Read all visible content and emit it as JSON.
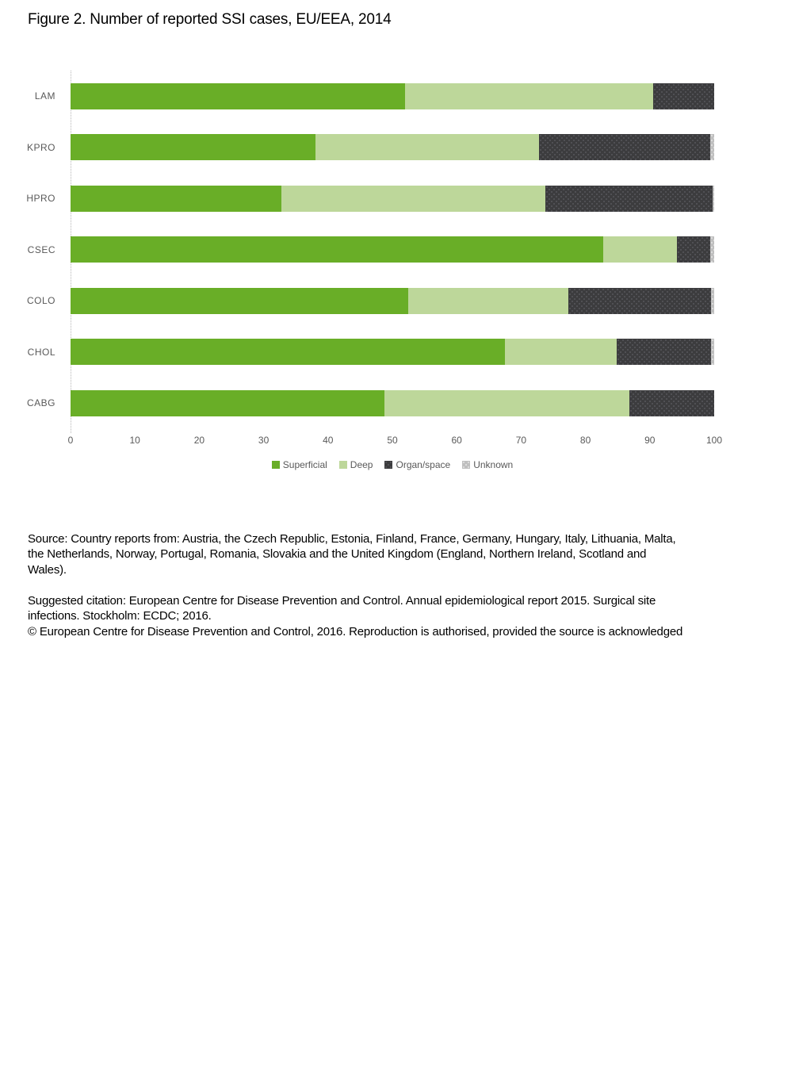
{
  "figure": {
    "title": "Figure 2. Number of reported SSI cases, EU/EEA, 2014"
  },
  "chart_data": {
    "type": "bar",
    "orientation": "horizontal",
    "stacked": true,
    "title": "Figure 2. Number of reported SSI cases, EU/EEA, 2014",
    "xlabel": "",
    "ylabel": "",
    "xlim": [
      0,
      100
    ],
    "xticks": [
      0,
      10,
      20,
      30,
      40,
      50,
      60,
      70,
      80,
      90,
      100
    ],
    "grid": false,
    "legend_position": "bottom",
    "categories": [
      "LAM",
      "KPRO",
      "HPRO",
      "CSEC",
      "COLO",
      "CHOL",
      "CABG"
    ],
    "series": [
      {
        "name": "Superficial",
        "color": "#69AE27",
        "values": [
          52.0,
          38.0,
          32.8,
          82.8,
          52.5,
          67.5,
          48.8
        ]
      },
      {
        "name": "Deep",
        "color": "#BDD79A",
        "values": [
          38.5,
          34.8,
          41.0,
          11.4,
          24.9,
          17.3,
          38.0
        ]
      },
      {
        "name": "Organ/space",
        "color": "#3C3C3E",
        "dot_color": "#55555A",
        "values": [
          9.5,
          26.6,
          25.9,
          5.2,
          22.1,
          14.7,
          13.2
        ]
      },
      {
        "name": "Unknown",
        "color": "#BFBFBF",
        "dot_color": "#E2E2E2",
        "values": [
          0,
          0.6,
          0.3,
          0.6,
          0.5,
          0.5,
          0
        ]
      }
    ]
  },
  "footer": {
    "source": "Source: Country reports from: Austria, the Czech Republic, Estonia, Finland, France, Germany, Hungary, Italy, Lithuania, Malta,\nthe Netherlands, Norway, Portugal, Romania, Slovakia and the United Kingdom (England, Northern Ireland, Scotland and\nWales).",
    "citation": "Suggested citation: European Centre for Disease Prevention and Control. Annual epidemiological report 2015. Surgical site\ninfections. Stockholm: ECDC; 2016.\n© European Centre for Disease Prevention and Control, 2016. Reproduction is authorised, provided the source is acknowledged"
  }
}
